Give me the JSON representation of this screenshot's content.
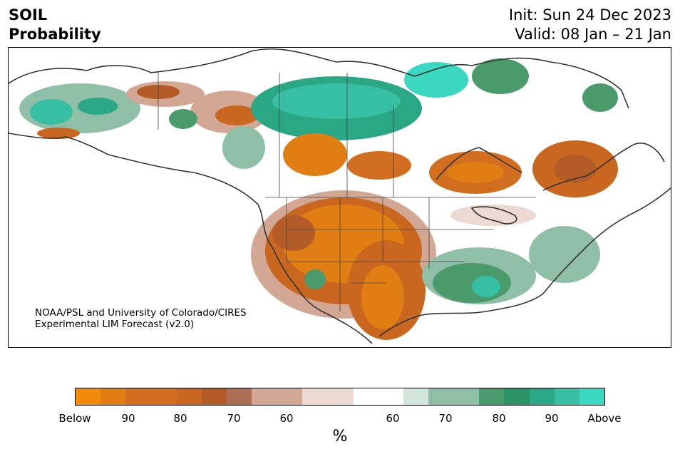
{
  "title": {
    "line1": "SOIL",
    "line2": "Probability"
  },
  "dates": {
    "init": "Init: Sun 24 Dec 2023",
    "valid": "Valid: 08 Jan – 21 Jan"
  },
  "credit": {
    "line1": "NOAA/PSL and University of Colorado/CIRES",
    "line2": "Experimental LIM Forecast (v2.0)"
  },
  "colorbar": {
    "unit": "%",
    "colors": [
      "#f28a0c",
      "#e07d13",
      "#d26e1f",
      "#c9661f",
      "#b35c28",
      "#ad6d52",
      "#d2a894",
      "#ebd9d2",
      "#ffffff",
      "#d0e6dc",
      "#8fbfa7",
      "#4a9a6c",
      "#2b9468",
      "#2aa785",
      "#36bfa3",
      "#3bd8c1"
    ],
    "tick_labels": [
      "Below",
      "90",
      "80",
      "70",
      "60",
      "60",
      "70",
      "80",
      "90",
      "Above"
    ]
  },
  "map_legend": {
    "below_colors": [
      "#f28a0c",
      "#d26e1f",
      "#b35c28",
      "#d2a894",
      "#ebd9d2"
    ],
    "above_colors": [
      "#d0e6dc",
      "#8fbfa7",
      "#4a9a6c",
      "#2aa785",
      "#3bd8c1"
    ]
  }
}
